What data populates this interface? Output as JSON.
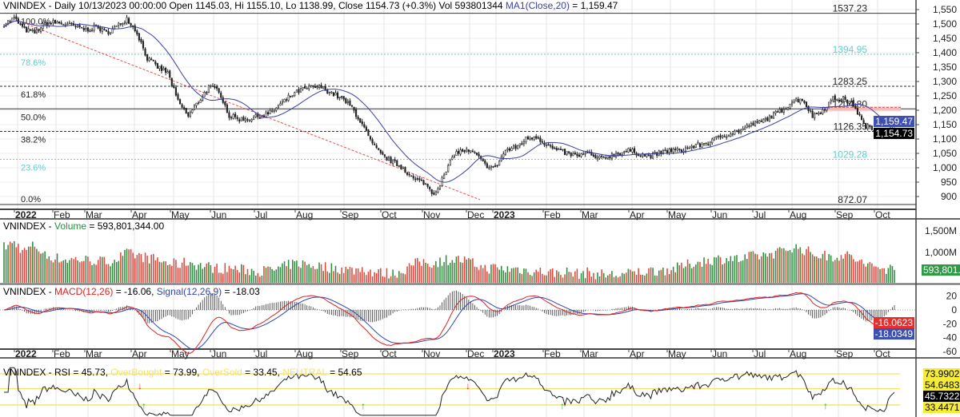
{
  "main": {
    "header": "VNINDEX - Daily 10/13/2023 00:00:00 Open 1145.03, Hi 1155.10, Lo 1138.99, Close 1154.73 (+0.3%) Vol 593801344",
    "ma_label": "MA1(Close,20)",
    "ma_value": " = 1,159.47",
    "ma_tag": "1,159.47",
    "close_tag": "1,154.73",
    "price_ticks": [
      "1,550",
      "1,500",
      "1,450",
      "1,400",
      "1,350",
      "1,300",
      "1,250",
      "1,200",
      "1,150",
      "1,100",
      "1,050",
      "1,000",
      "950",
      "900"
    ],
    "price_tick_values": [
      1550,
      1500,
      1450,
      1400,
      1350,
      1300,
      1250,
      1200,
      1150,
      1100,
      1050,
      1000,
      950,
      900
    ],
    "fib_levels": [
      {
        "pct": "100.0%",
        "value": 1537.23,
        "label": "1537.23",
        "style": "solid"
      },
      {
        "pct": "78.6%",
        "value": 1394.95,
        "label": "1394.95",
        "style": "cyan"
      },
      {
        "pct": "61.8%",
        "value": 1283.25,
        "label": "1283.25",
        "style": "dotted"
      },
      {
        "pct": "50.0%",
        "value": 1204.8,
        "label": "1204.80",
        "style": "solid"
      },
      {
        "pct": "38.2%",
        "value": 1126.35,
        "label": "1126.35",
        "style": "dotted"
      },
      {
        "pct": "23.6%",
        "value": 1029.28,
        "label": "1029.28",
        "style": "cyan"
      },
      {
        "pct": "0.0%",
        "value": 872.07,
        "label": "872.07",
        "style": "solid"
      }
    ]
  },
  "months": [
    "2022",
    "Feb",
    "Mar",
    "Apr",
    "May",
    "Jun",
    "Jul",
    "Aug",
    "Sep",
    "Oct",
    "Nov",
    "Dec",
    "2023",
    "Feb",
    "Mar",
    "Apr",
    "May",
    "Jun",
    "Jul",
    "Aug",
    "Sep",
    "Oct"
  ],
  "volume": {
    "prefix": "VNINDEX - ",
    "label": "Volume",
    "value": " = 593,801,344.00",
    "tag": "593,801.3",
    "ticks": [
      "1,500M",
      "1,000M"
    ],
    "tick_values": [
      1500,
      1000
    ]
  },
  "macd": {
    "prefix": "VNINDEX - ",
    "macd_label": "MACD(12,26)",
    "macd_value": " = -16.06, ",
    "signal_label": "Signal(12,26,9)",
    "signal_value": " = -18.03",
    "macd_tag": "-16.0623",
    "signal_tag": "-18.0349",
    "ticks": [
      "20",
      "0",
      "-20",
      "-40",
      "-60"
    ],
    "tick_values": [
      20,
      0,
      -20,
      -40,
      -60
    ]
  },
  "rsi": {
    "prefix": "VNINDEX - RSI = 45.73, ",
    "ob_label": "OverBought",
    "ob_value": " = 73.99, ",
    "os_label": "OverSold",
    "os_value": " = 33.45, ",
    "neutral_label": "NEUTRAL",
    "neutral_value": " = 54.65",
    "tags": {
      "ob": "73.9902",
      "neutral": "54.6483",
      "rsi": "45.7322",
      "os": "33.4471"
    },
    "levels": {
      "ob": 73.99,
      "neutral": 54.65,
      "os": 33.45,
      "rsi": 45.73
    }
  },
  "colors": {
    "up": "#2e8b3e",
    "down": "#e0463a",
    "ma": "#3b3fa0",
    "macd": "#d22",
    "signal": "#3344aa",
    "fib_cyan": "#6cc",
    "band": "#f2e36a"
  },
  "chart_data": {
    "type": "candlestick",
    "title": "VNINDEX - Daily",
    "x_range": [
      "2022-01",
      "2023-10-13"
    ],
    "ylim": [
      870,
      1560
    ],
    "weekly_close": [
      1500,
      1520,
      1480,
      1470,
      1500,
      1505,
      1500,
      1490,
      1480,
      1490,
      1470,
      1490,
      1520,
      1470,
      1380,
      1350,
      1330,
      1230,
      1180,
      1230,
      1280,
      1270,
      1180,
      1170,
      1170,
      1180,
      1190,
      1220,
      1250,
      1270,
      1280,
      1280,
      1260,
      1240,
      1210,
      1150,
      1080,
      1040,
      1020,
      1000,
      960,
      950,
      910,
      970,
      1050,
      1060,
      1050,
      1010,
      1000,
      1060,
      1070,
      1100,
      1110,
      1080,
      1060,
      1050,
      1040,
      1050,
      1030,
      1040,
      1050,
      1060,
      1050,
      1040,
      1050,
      1060,
      1060,
      1070,
      1080,
      1090,
      1110,
      1120,
      1130,
      1150,
      1160,
      1180,
      1200,
      1230,
      1240,
      1180,
      1200,
      1240,
      1240,
      1220,
      1150,
      1130,
      1110,
      1155
    ],
    "weekly_volume_m": [
      1100,
      1200,
      1000,
      1150,
      900,
      850,
      800,
      820,
      800,
      780,
      760,
      820,
      950,
      900,
      850,
      800,
      720,
      700,
      760,
      680,
      640,
      600,
      620,
      580,
      560,
      540,
      560,
      600,
      700,
      720,
      680,
      650,
      620,
      600,
      560,
      600,
      520,
      500,
      480,
      560,
      700,
      760,
      720,
      800,
      820,
      780,
      700,
      600,
      620,
      580,
      600,
      560,
      540,
      520,
      500,
      520,
      480,
      500,
      470,
      460,
      450,
      480,
      520,
      540,
      560,
      580,
      620,
      700,
      760,
      800,
      820,
      850,
      800,
      880,
      900,
      950,
      1000,
      1100,
      1050,
      950,
      900,
      880,
      920,
      850,
      700,
      640,
      600,
      594
    ]
  }
}
